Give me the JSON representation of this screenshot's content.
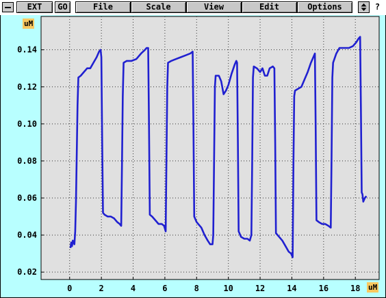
{
  "menubar": {
    "items": [
      {
        "label": "EXT"
      },
      {
        "label": "GO"
      },
      {
        "label": "File"
      },
      {
        "label": "Scale"
      },
      {
        "label": "View"
      },
      {
        "label": "Edit"
      },
      {
        "label": "Options"
      }
    ],
    "help_label": "?",
    "system_icon": "minus-icon",
    "scroll_icon": "up-down-arrows-icon"
  },
  "colors": {
    "window_bg": "#b8ffff",
    "plot_bg": "#e0e0e0",
    "trace": "#2020d0",
    "unit_label_bg": "#f8c860"
  },
  "chart_data": {
    "type": "line",
    "ylabel": "uM",
    "xlabel": "uM",
    "xlim": [
      -1.8,
      19.5
    ],
    "ylim": [
      0.016,
      0.158
    ],
    "xticks": [
      0,
      2,
      4,
      6,
      8,
      10,
      12,
      14,
      16,
      18
    ],
    "yticks": [
      0.02,
      0.04,
      0.06,
      0.08,
      0.1,
      0.12,
      0.14
    ],
    "ytick_labels": [
      "0.02",
      "0.04",
      "0.06",
      "0.08",
      "0.10",
      "0.12",
      "0.14"
    ],
    "grid": true,
    "series": [
      {
        "color": "#2020d0",
        "points": [
          [
            0.05,
            0.033
          ],
          [
            0.1,
            0.036
          ],
          [
            0.15,
            0.034
          ],
          [
            0.2,
            0.037
          ],
          [
            0.3,
            0.035
          ],
          [
            0.35,
            0.042
          ],
          [
            0.4,
            0.058
          ],
          [
            0.45,
            0.085
          ],
          [
            0.5,
            0.11
          ],
          [
            0.55,
            0.125
          ],
          [
            0.7,
            0.126
          ],
          [
            0.9,
            0.128
          ],
          [
            1.1,
            0.13
          ],
          [
            1.3,
            0.13
          ],
          [
            1.5,
            0.133
          ],
          [
            1.7,
            0.136
          ],
          [
            1.85,
            0.139
          ],
          [
            1.95,
            0.14
          ],
          [
            2.0,
            0.136
          ],
          [
            2.05,
            0.09
          ],
          [
            2.1,
            0.052
          ],
          [
            2.2,
            0.051
          ],
          [
            2.4,
            0.05
          ],
          [
            2.6,
            0.05
          ],
          [
            2.8,
            0.049
          ],
          [
            3.0,
            0.047
          ],
          [
            3.15,
            0.046
          ],
          [
            3.25,
            0.045
          ],
          [
            3.3,
            0.08
          ],
          [
            3.35,
            0.115
          ],
          [
            3.4,
            0.133
          ],
          [
            3.6,
            0.134
          ],
          [
            3.9,
            0.134
          ],
          [
            4.2,
            0.135
          ],
          [
            4.5,
            0.138
          ],
          [
            4.75,
            0.14
          ],
          [
            4.85,
            0.141
          ],
          [
            4.95,
            0.141
          ],
          [
            5.0,
            0.1
          ],
          [
            5.05,
            0.051
          ],
          [
            5.2,
            0.05
          ],
          [
            5.4,
            0.048
          ],
          [
            5.6,
            0.046
          ],
          [
            5.8,
            0.046
          ],
          [
            5.95,
            0.045
          ],
          [
            6.05,
            0.042
          ],
          [
            6.1,
            0.08
          ],
          [
            6.15,
            0.12
          ],
          [
            6.2,
            0.133
          ],
          [
            6.4,
            0.134
          ],
          [
            6.7,
            0.135
          ],
          [
            7.0,
            0.136
          ],
          [
            7.3,
            0.137
          ],
          [
            7.6,
            0.138
          ],
          [
            7.75,
            0.139
          ],
          [
            7.8,
            0.1
          ],
          [
            7.85,
            0.05
          ],
          [
            8.0,
            0.047
          ],
          [
            8.3,
            0.044
          ],
          [
            8.5,
            0.04
          ],
          [
            8.7,
            0.037
          ],
          [
            8.85,
            0.035
          ],
          [
            9.0,
            0.035
          ],
          [
            9.05,
            0.04
          ],
          [
            9.1,
            0.08
          ],
          [
            9.15,
            0.12
          ],
          [
            9.2,
            0.126
          ],
          [
            9.4,
            0.126
          ],
          [
            9.55,
            0.123
          ],
          [
            9.7,
            0.116
          ],
          [
            9.85,
            0.118
          ],
          [
            10.0,
            0.121
          ],
          [
            10.2,
            0.127
          ],
          [
            10.4,
            0.132
          ],
          [
            10.5,
            0.134
          ],
          [
            10.55,
            0.133
          ],
          [
            10.6,
            0.09
          ],
          [
            10.65,
            0.042
          ],
          [
            10.8,
            0.039
          ],
          [
            11.0,
            0.038
          ],
          [
            11.2,
            0.038
          ],
          [
            11.35,
            0.037
          ],
          [
            11.45,
            0.04
          ],
          [
            11.5,
            0.08
          ],
          [
            11.55,
            0.125
          ],
          [
            11.6,
            0.131
          ],
          [
            11.8,
            0.13
          ],
          [
            12.0,
            0.128
          ],
          [
            12.15,
            0.13
          ],
          [
            12.3,
            0.126
          ],
          [
            12.45,
            0.126
          ],
          [
            12.6,
            0.13
          ],
          [
            12.8,
            0.131
          ],
          [
            12.9,
            0.13
          ],
          [
            12.95,
            0.09
          ],
          [
            13.0,
            0.041
          ],
          [
            13.2,
            0.039
          ],
          [
            13.4,
            0.037
          ],
          [
            13.6,
            0.034
          ],
          [
            13.8,
            0.031
          ],
          [
            13.95,
            0.03
          ],
          [
            14.05,
            0.028
          ],
          [
            14.1,
            0.08
          ],
          [
            14.15,
            0.115
          ],
          [
            14.2,
            0.118
          ],
          [
            14.4,
            0.119
          ],
          [
            14.6,
            0.12
          ],
          [
            14.8,
            0.124
          ],
          [
            15.0,
            0.128
          ],
          [
            15.2,
            0.133
          ],
          [
            15.35,
            0.136
          ],
          [
            15.45,
            0.138
          ],
          [
            15.5,
            0.1
          ],
          [
            15.55,
            0.048
          ],
          [
            15.7,
            0.047
          ],
          [
            15.9,
            0.046
          ],
          [
            16.1,
            0.046
          ],
          [
            16.3,
            0.045
          ],
          [
            16.45,
            0.044
          ],
          [
            16.5,
            0.08
          ],
          [
            16.55,
            0.125
          ],
          [
            16.6,
            0.133
          ],
          [
            16.8,
            0.138
          ],
          [
            17.0,
            0.141
          ],
          [
            17.3,
            0.141
          ],
          [
            17.6,
            0.141
          ],
          [
            17.85,
            0.142
          ],
          [
            18.05,
            0.144
          ],
          [
            18.2,
            0.146
          ],
          [
            18.3,
            0.147
          ],
          [
            18.35,
            0.11
          ],
          [
            18.4,
            0.063
          ],
          [
            18.45,
            0.062
          ],
          [
            18.5,
            0.058
          ],
          [
            18.6,
            0.06
          ],
          [
            18.7,
            0.061
          ]
        ]
      }
    ]
  }
}
